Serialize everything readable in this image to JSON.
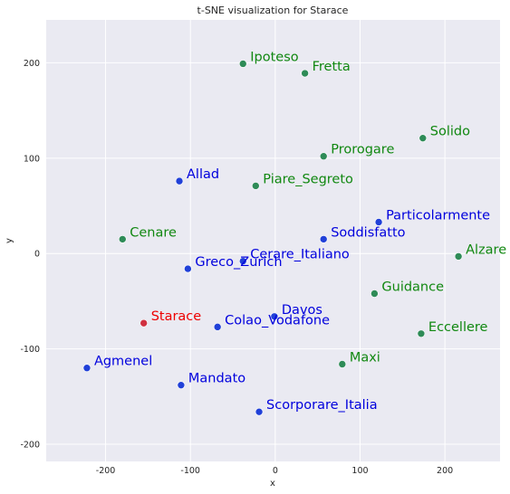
{
  "colors": {
    "plot_bg": "#eaeaf2",
    "grid": "#ffffff",
    "group_blue_marker": "#2040d8",
    "group_blue_text": "#0000dd",
    "group_green_marker": "#2e8b57",
    "group_green_text": "#118811",
    "target_marker": "#d03040",
    "target_text": "#ee0000"
  },
  "chart_data": {
    "type": "scatter",
    "title": "t-SNE visualization for Starace",
    "xlabel": "x",
    "ylabel": "y",
    "xlim": [
      -270,
      265
    ],
    "ylim": [
      -218,
      245
    ],
    "xticks": [
      -200,
      -100,
      0,
      100,
      200
    ],
    "yticks": [
      -200,
      -100,
      0,
      100,
      200
    ],
    "grid": true,
    "points": [
      {
        "label": "Ipoteso",
        "x": -38,
        "y": 199,
        "group": "green"
      },
      {
        "label": "Fretta",
        "x": 35,
        "y": 189,
        "group": "green"
      },
      {
        "label": "Solido",
        "x": 174,
        "y": 121,
        "group": "green"
      },
      {
        "label": "Prorogare",
        "x": 57,
        "y": 102,
        "group": "green"
      },
      {
        "label": "Allad",
        "x": -113,
        "y": 76,
        "group": "blue"
      },
      {
        "label": "Piare_Segreto",
        "x": -23,
        "y": 71,
        "group": "green"
      },
      {
        "label": "Particolarmente",
        "x": 122,
        "y": 33,
        "group": "blue"
      },
      {
        "label": "Cenare",
        "x": -180,
        "y": 15,
        "group": "green"
      },
      {
        "label": "Soddisfatto",
        "x": 57,
        "y": 15,
        "group": "blue"
      },
      {
        "label": "Alzare",
        "x": 216,
        "y": -3,
        "group": "green"
      },
      {
        "label": "Cerare_Italiano",
        "x": -38,
        "y": -8,
        "group": "blue"
      },
      {
        "label": "Greco_Zurich",
        "x": -103,
        "y": -16,
        "group": "blue"
      },
      {
        "label": "Guidance",
        "x": 117,
        "y": -42,
        "group": "green"
      },
      {
        "label": "Davos",
        "x": -1,
        "y": -66,
        "group": "blue"
      },
      {
        "label": "Starace",
        "x": -155,
        "y": -73,
        "group": "target"
      },
      {
        "label": "Colao_Vodafone",
        "x": -68,
        "y": -77,
        "group": "blue"
      },
      {
        "label": "Eccellere",
        "x": 172,
        "y": -84,
        "group": "green"
      },
      {
        "label": "Maxi",
        "x": 79,
        "y": -116,
        "group": "green"
      },
      {
        "label": "Agmenel",
        "x": -222,
        "y": -120,
        "group": "blue"
      },
      {
        "label": "Mandato",
        "x": -111,
        "y": -138,
        "group": "blue"
      },
      {
        "label": "Scorporare_Italia",
        "x": -19,
        "y": -166,
        "group": "blue"
      }
    ]
  }
}
